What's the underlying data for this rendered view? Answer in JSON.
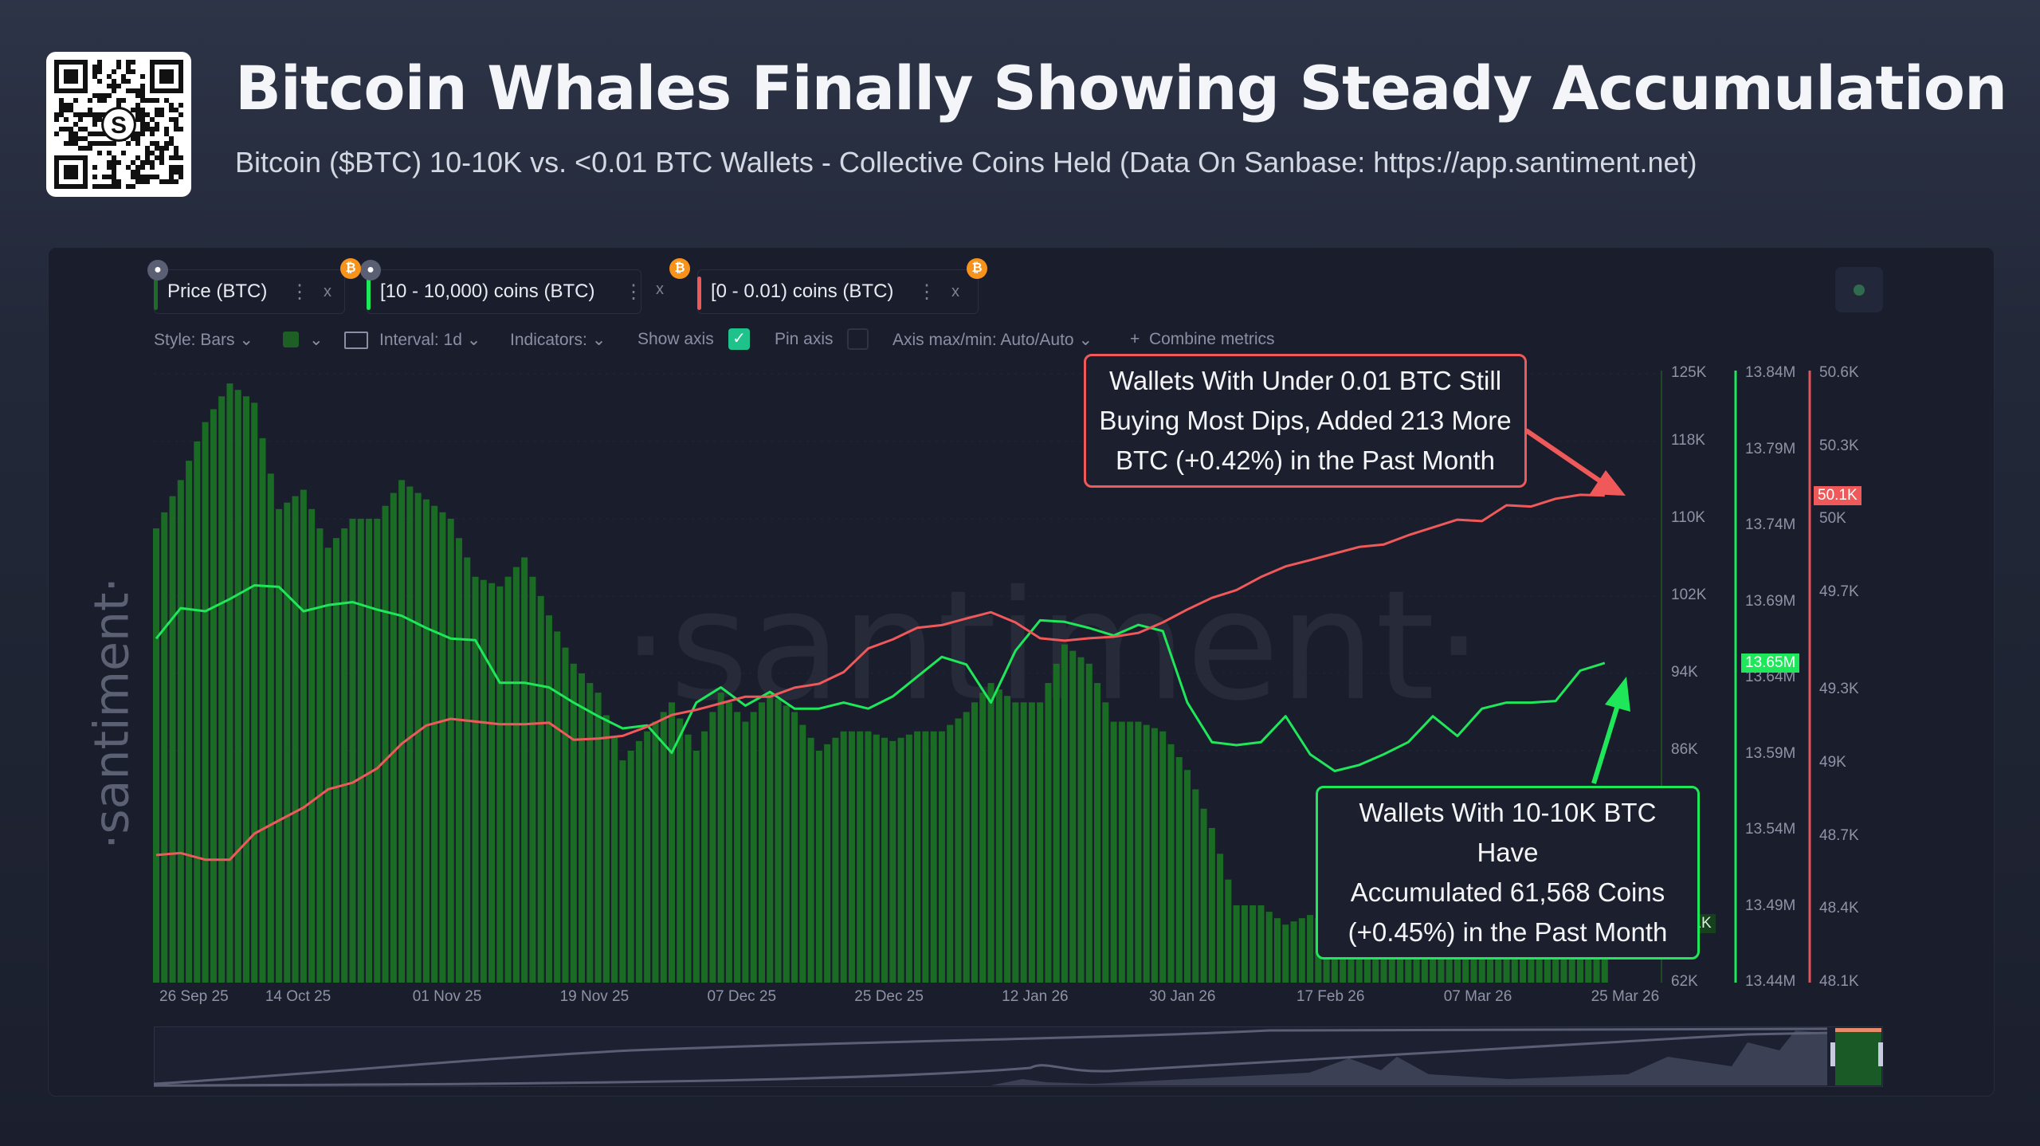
{
  "header": {
    "title": "Bitcoin Whales Finally Showing Steady Accumulation",
    "subtitle": "Bitcoin ($BTC) 10-10K vs. <0.01 BTC Wallets - Collective Coins Held (Data On Sanbase: https://app.santiment.net)",
    "qr_logo": "S"
  },
  "tabs": [
    {
      "label": "Price (BTC)",
      "color": "#1f6b2a"
    },
    {
      "label": "[10 - 10,000) coins (BTC)",
      "color": "#1ee85a"
    },
    {
      "label": "[0 - 0.01) coins (BTC)",
      "color": "#f0595a"
    }
  ],
  "tab_icons": {
    "more": "⋮",
    "close": "x",
    "lock": "lock-icon",
    "asset": "₿"
  },
  "toolbar": {
    "style": "Style: Bars",
    "interval": "Interval: 1d",
    "indicators": "Indicators:",
    "show_axis": "Show axis",
    "show_axis_checked": true,
    "pin_axis": "Pin axis",
    "pin_axis_checked": false,
    "axis_minmax": "Axis max/min: Auto/Auto",
    "combine": "Combine metrics",
    "bar_color": "#1e5f26",
    "accent": "#1fc28b"
  },
  "watermark": "·santiment·",
  "annotations": {
    "red": {
      "lines": [
        "Wallets With Under 0.01 BTC Still",
        "Buying Most Dips, Added 213 More",
        "BTC (+0.42%) in the Past Month"
      ],
      "color": "#f0595a"
    },
    "green": {
      "lines": [
        "Wallets With 10-10K BTC Have",
        "Accumulated 61,568 Coins",
        "(+0.45%) in the Past Month"
      ],
      "color": "#1ee85a"
    }
  },
  "chart_data": {
    "type": "bar+line",
    "x_ticks": [
      "26 Sep 25",
      "14 Oct 25",
      "01 Nov 25",
      "19 Nov 25",
      "07 Dec 25",
      "25 Dec 25",
      "12 Jan 26",
      "30 Jan 26",
      "17 Feb 26",
      "07 Mar 26",
      "25 Mar 26"
    ],
    "x_tick_dates": [
      "2025-09-26",
      "2025-10-14",
      "2025-11-01",
      "2025-11-19",
      "2025-12-07",
      "2025-12-25",
      "2026-01-12",
      "2026-01-30",
      "2026-02-17",
      "2026-03-07",
      "2026-03-25"
    ],
    "x_start": "2025-09-26",
    "step_days": 3,
    "axes": [
      {
        "name": "Price (BTC)",
        "unit": "USD (K)",
        "ylim": [
          62,
          125
        ],
        "ticks": [
          "125K",
          "118K",
          "110K",
          "102K",
          "94K",
          "86K",
          "62K"
        ],
        "tick_values": [
          125,
          118,
          110,
          102,
          94,
          86,
          62
        ],
        "last_value_label": "68.1K",
        "color": "#1f6b2a"
      },
      {
        "name": "[10 - 10,000) coins (BTC)",
        "unit": "M BTC",
        "ylim": [
          13.44,
          13.84
        ],
        "ticks": [
          "13.84M",
          "13.79M",
          "13.74M",
          "13.69M",
          "13.64M",
          "13.59M",
          "13.54M",
          "13.49M",
          "13.44M"
        ],
        "tick_values": [
          13.84,
          13.79,
          13.74,
          13.69,
          13.64,
          13.59,
          13.54,
          13.49,
          13.44
        ],
        "last_value_label": "13.65M",
        "color": "#1ee85a"
      },
      {
        "name": "[0 - 0.01) coins (BTC)",
        "unit": "K BTC",
        "ylim": [
          48.1,
          50.6
        ],
        "ticks": [
          "50.6K",
          "50.3K",
          "50K",
          "49.7K",
          "49.3K",
          "49K",
          "48.7K",
          "48.4K",
          "48.1K"
        ],
        "tick_values": [
          50.6,
          50.3,
          50.0,
          49.7,
          49.3,
          49.0,
          48.7,
          48.4,
          48.1
        ],
        "last_value_label": "50.1K",
        "color": "#f0595a"
      }
    ],
    "series": [
      {
        "name": "Price (BTC)",
        "type": "bar",
        "values": [
          109,
          114,
          120,
          124,
          122,
          111,
          113,
          107,
          110,
          110,
          114,
          112,
          110,
          104,
          103,
          106,
          100,
          95,
          92,
          85,
          88,
          91,
          86,
          92,
          89,
          92,
          90,
          86,
          88,
          88,
          87,
          88,
          88,
          90,
          93,
          91,
          91,
          97,
          95,
          89,
          89,
          88,
          84,
          78,
          70,
          70,
          68,
          69,
          68,
          67,
          65,
          67,
          66,
          68,
          68,
          69,
          70,
          71,
          70,
          68.1
        ]
      },
      {
        "name": "[10 - 10,000) coins (BTC)",
        "type": "line",
        "values": [
          13.666,
          13.686,
          13.684,
          13.692,
          13.701,
          13.7,
          13.684,
          13.688,
          13.69,
          13.685,
          13.681,
          13.673,
          13.666,
          13.665,
          13.637,
          13.637,
          13.634,
          13.624,
          13.615,
          13.607,
          13.609,
          13.591,
          13.624,
          13.634,
          13.622,
          13.631,
          13.62,
          13.62,
          13.624,
          13.62,
          13.628,
          13.641,
          13.654,
          13.649,
          13.624,
          13.658,
          13.678,
          13.677,
          13.673,
          13.668,
          13.675,
          13.671,
          13.624,
          13.598,
          13.596,
          13.598,
          13.615,
          13.59,
          13.579,
          13.583,
          13.59,
          13.598,
          13.615,
          13.602,
          13.62,
          13.624,
          13.624,
          13.625,
          13.645,
          13.65
        ]
      },
      {
        "name": "[0 - 0.01) coins (BTC)",
        "type": "line",
        "values": [
          48.624,
          48.632,
          48.605,
          48.605,
          48.712,
          48.766,
          48.819,
          48.894,
          48.921,
          48.98,
          49.081,
          49.156,
          49.183,
          49.172,
          49.161,
          49.161,
          49.167,
          49.097,
          49.102,
          49.113,
          49.151,
          49.199,
          49.22,
          49.247,
          49.274,
          49.274,
          49.311,
          49.327,
          49.375,
          49.472,
          49.509,
          49.557,
          49.568,
          49.595,
          49.621,
          49.579,
          49.514,
          49.504,
          49.514,
          49.52,
          49.536,
          49.579,
          49.632,
          49.68,
          49.712,
          49.766,
          49.809,
          49.835,
          49.862,
          49.889,
          49.899,
          49.937,
          49.969,
          50.001,
          49.995,
          50.06,
          50.055,
          50.087,
          50.103,
          50.1
        ]
      }
    ],
    "grid": true,
    "legend": "top-left tabs"
  }
}
